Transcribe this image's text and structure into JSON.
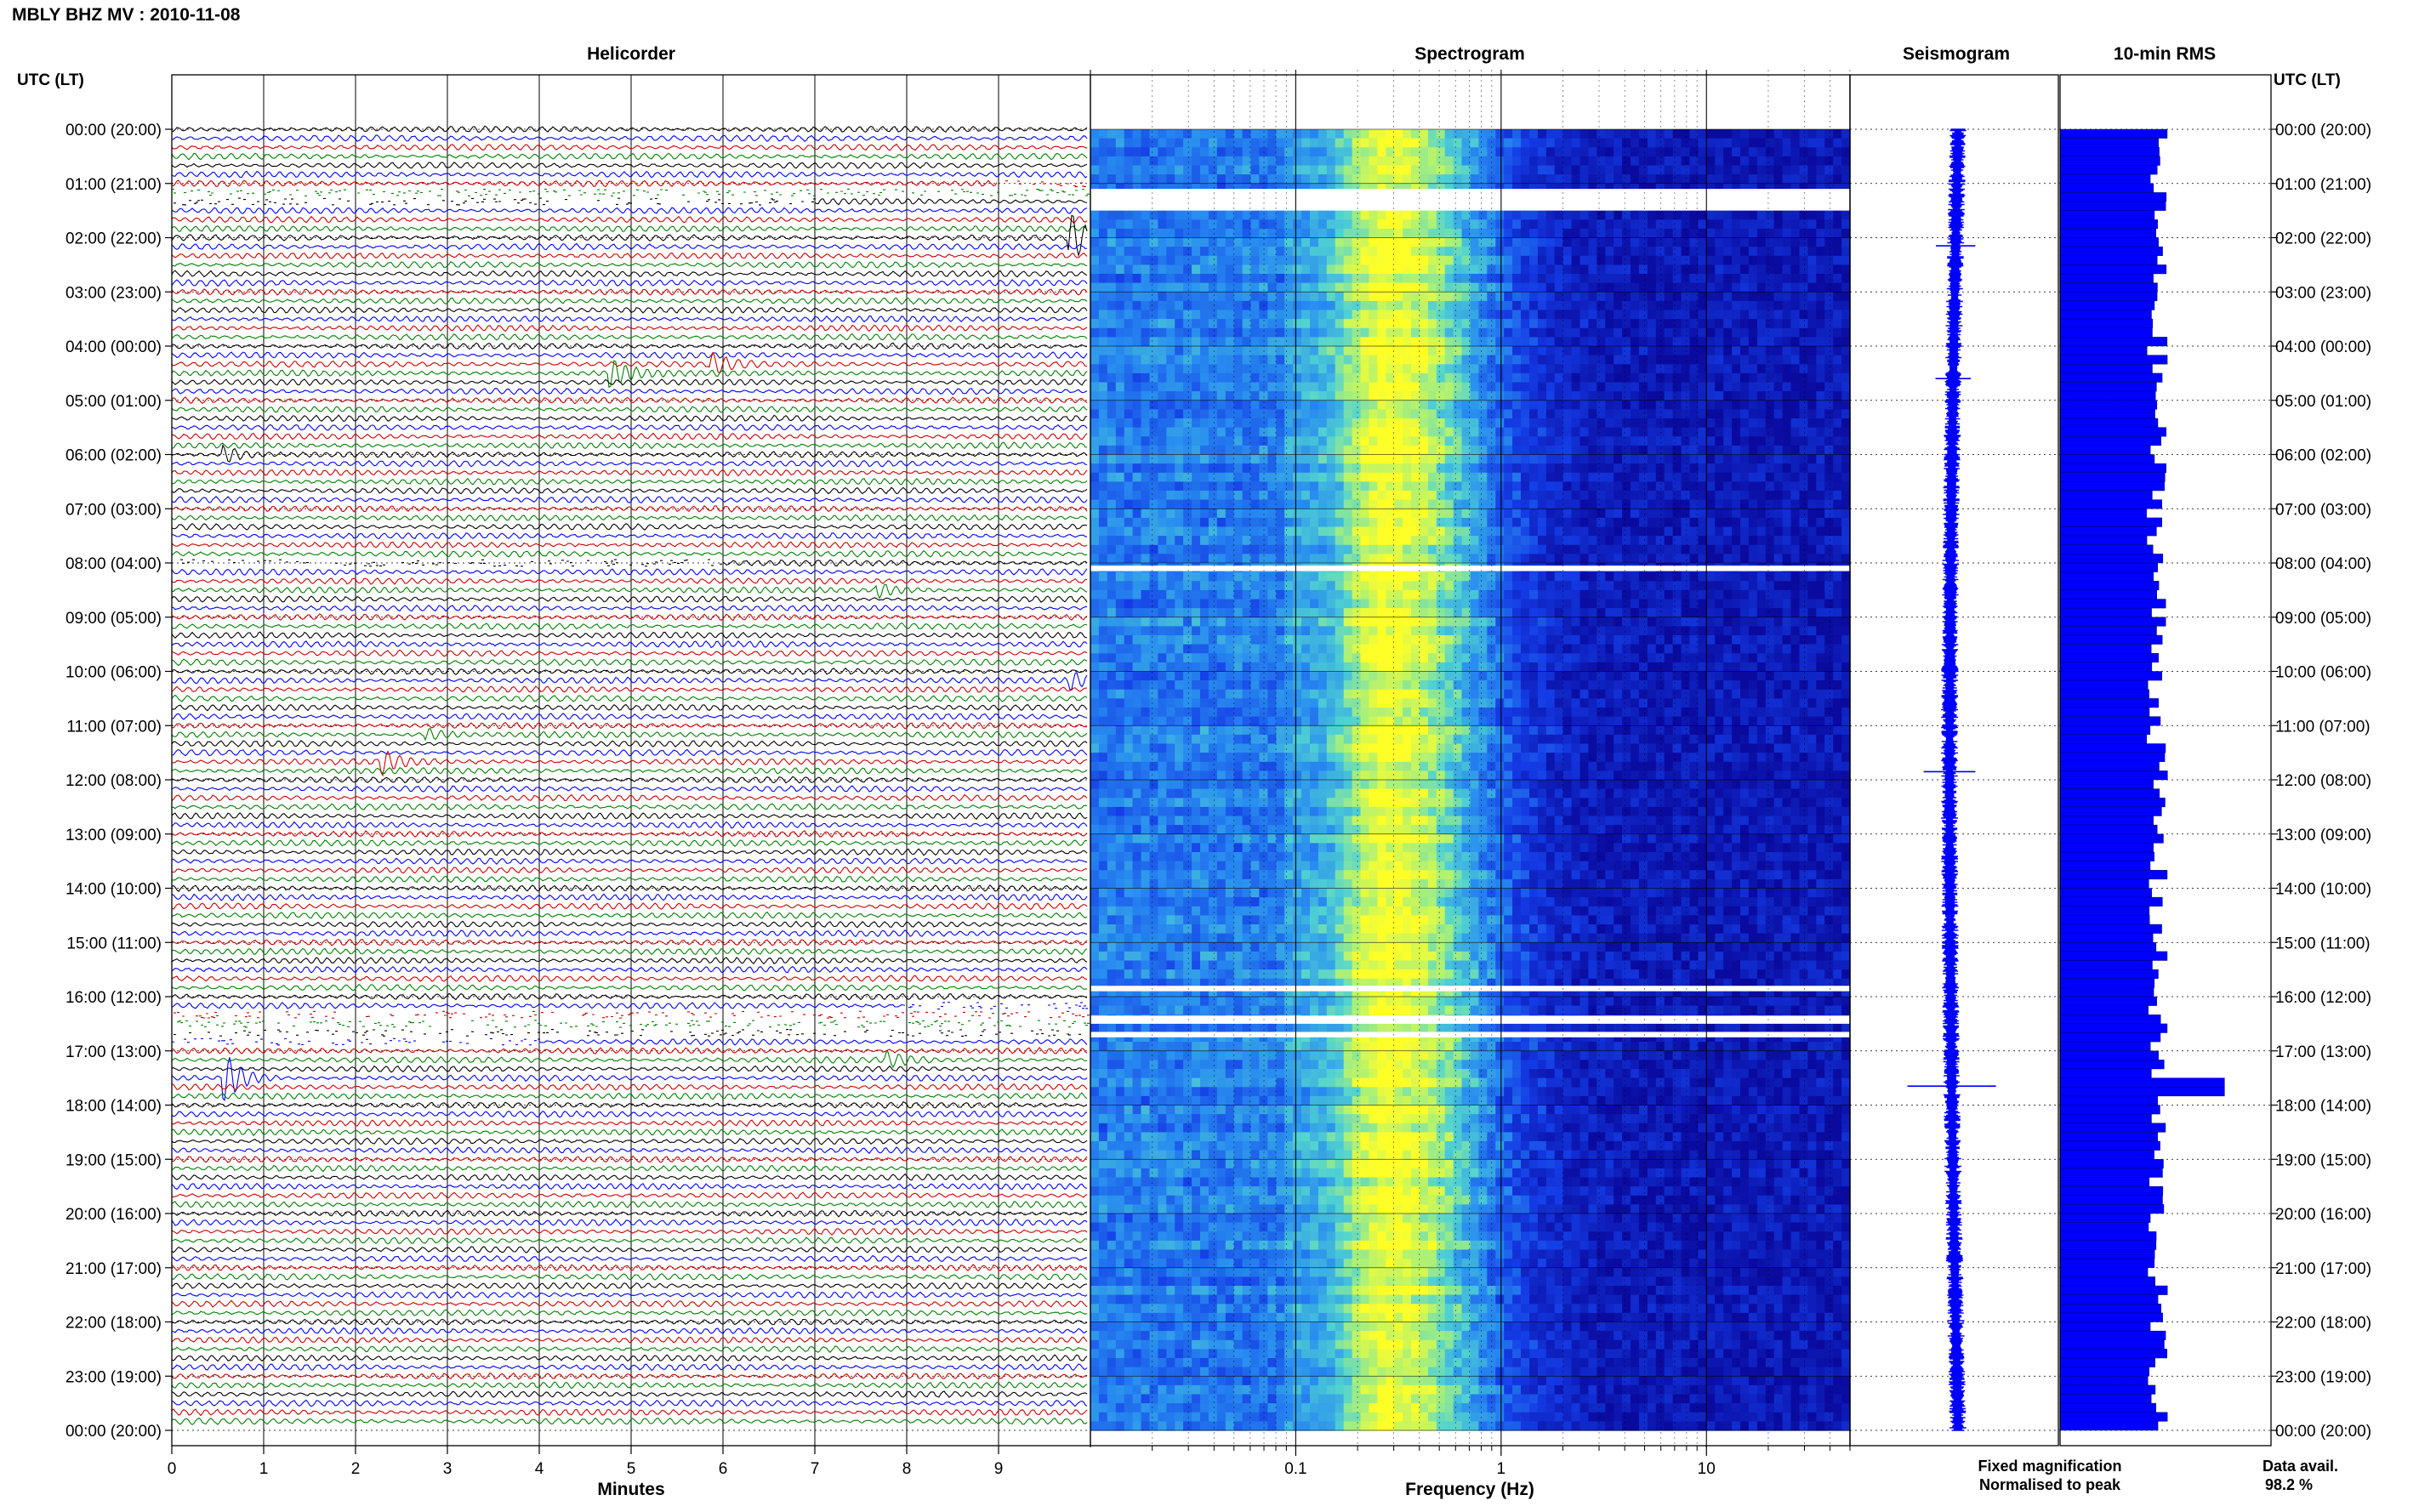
{
  "header": {
    "station": "MBLY BHZ MV",
    "separator": " : ",
    "date": "2010-11-08"
  },
  "labels": {
    "utc_left": "UTC (LT)",
    "utc_right": "UTC (LT)",
    "helicorder_title": "Helicorder",
    "spectrogram_title": "Spectrogram",
    "seismogram_title": "Seismogram",
    "rms_title": "10-min RMS",
    "minutes_label": "Minutes",
    "frequency_label": "Frequency (Hz)",
    "fixed_magnification": "Fixed magnification",
    "normalised_to_peak": "Normalised to peak",
    "data_avail_label": "Data avail.",
    "data_avail_value": "98.2 %"
  },
  "colors": {
    "fixed_magnification": "#0000ff",
    "normalised_to_peak": "#ff0000",
    "trace_cycle": [
      "#000000",
      "#0000ff",
      "#cc0000",
      "#008000"
    ],
    "rms_bar": "#0000ff",
    "spectrogram_low": "#08089c",
    "spectrogram_high": "#ffff20"
  },
  "chart_data": [
    {
      "type": "line",
      "name": "Helicorder",
      "y_tick_labels": [
        "00:00 (20:00)",
        "01:00 (21:00)",
        "02:00 (22:00)",
        "03:00 (23:00)",
        "04:00 (00:00)",
        "05:00 (01:00)",
        "06:00 (02:00)",
        "07:00 (03:00)",
        "08:00 (04:00)",
        "09:00 (05:00)",
        "10:00 (06:00)",
        "11:00 (07:00)",
        "12:00 (08:00)",
        "13:00 (09:00)",
        "14:00 (10:00)",
        "15:00 (11:00)",
        "16:00 (12:00)",
        "17:00 (13:00)",
        "18:00 (14:00)",
        "19:00 (15:00)",
        "20:00 (16:00)",
        "21:00 (17:00)",
        "22:00 (18:00)",
        "23:00 (19:00)",
        "00:00 (20:00)"
      ],
      "x_ticks": [
        0,
        1,
        2,
        3,
        4,
        5,
        6,
        7,
        8,
        9
      ],
      "xlim": [
        0,
        10
      ],
      "xlabel": "Minutes",
      "lines_per_hour": 6,
      "grid": true,
      "events": [
        {
          "hour": 2.0,
          "minute": 9.8,
          "strength": 1.0
        },
        {
          "hour": 4.5,
          "minute": 4.8,
          "strength": 0.6
        },
        {
          "hour": 4.45,
          "minute": 5.9,
          "strength": 0.4
        },
        {
          "hour": 6.1,
          "minute": 0.6,
          "strength": 0.35
        },
        {
          "hour": 8.5,
          "minute": 7.7,
          "strength": 0.3
        },
        {
          "hour": 10.3,
          "minute": 9.8,
          "strength": 0.35
        },
        {
          "hour": 11.8,
          "minute": 2.3,
          "strength": 0.5
        },
        {
          "hour": 11.2,
          "minute": 2.8,
          "strength": 0.25
        },
        {
          "hour": 17.2,
          "minute": 7.8,
          "strength": 0.3
        },
        {
          "hour": 17.6,
          "minute": 0.6,
          "strength": 1.0
        }
      ],
      "gaps": [
        {
          "from_hour": 1.15,
          "to_hour": 1.45
        },
        {
          "from_hour": 8.0,
          "to_hour": 8.1
        },
        {
          "from_hour": 16.3,
          "to_hour": 16.9
        }
      ]
    },
    {
      "type": "heatmap",
      "name": "Spectrogram",
      "x_scale": "log",
      "xlim": [
        0.01,
        50
      ],
      "x_tick_labels": [
        "0.1",
        "1",
        "10"
      ],
      "x_tick_values": [
        0.1,
        1,
        10
      ],
      "xlabel": "Frequency (Hz)",
      "peak_frequency_hz": 0.25,
      "ylim_hours": [
        0,
        24
      ],
      "gaps": [
        {
          "from_hour": 1.1,
          "to_hour": 1.5
        },
        {
          "from_hour": 8.05,
          "to_hour": 8.15
        },
        {
          "from_hour": 15.8,
          "to_hour": 15.9
        },
        {
          "from_hour": 16.35,
          "to_hour": 16.5
        },
        {
          "from_hour": 16.65,
          "to_hour": 16.75
        }
      ]
    },
    {
      "type": "line",
      "name": "Seismogram",
      "spikes": [
        {
          "hour": 2.15,
          "size": 0.4
        },
        {
          "hour": 4.6,
          "size": 0.35
        },
        {
          "hour": 11.85,
          "size": 0.55
        },
        {
          "hour": 17.65,
          "size": 1.0
        }
      ]
    },
    {
      "type": "bar",
      "name": "10-min RMS",
      "bins_per_hour": 6,
      "baseline_relative": 0.5,
      "peak_hour": 17.65
    }
  ]
}
